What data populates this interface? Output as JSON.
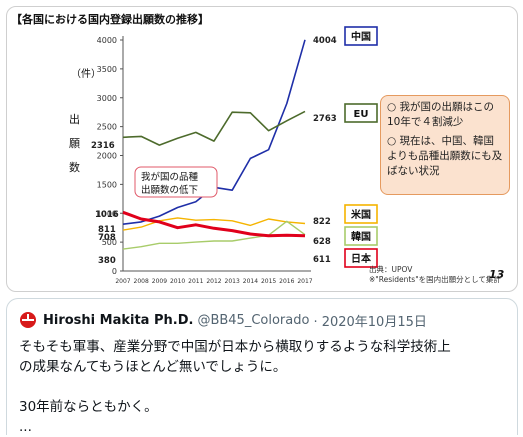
{
  "slide": {
    "title": "【各国における国内登録出願数の推移】",
    "unit_label": "（件）",
    "ylabel_chars": [
      "出",
      "願",
      "数"
    ],
    "callout": "我が国の品種\n出願数の低下",
    "source_line1": "出典：UPOV",
    "source_line2": "※\"Residents\"を国内出願分として集計",
    "page_number": "13",
    "note_items": [
      "○ 我が国の出願はこの10年で４割減少",
      "○ 現在は、中国、韓国よりも品種出願数にも及ばない状況"
    ]
  },
  "chart_data": {
    "type": "line",
    "x": [
      2007,
      2008,
      2009,
      2010,
      2011,
      2012,
      2013,
      2014,
      2015,
      2016,
      2017
    ],
    "ylim": [
      0,
      4000
    ],
    "yticks": [
      0,
      500,
      1000,
      1500,
      2000,
      2500,
      3000,
      3500,
      4000
    ],
    "series": [
      {
        "name": "中国",
        "color": "#1f2fa8",
        "values": [
          811,
          850,
          950,
          1100,
          1200,
          1450,
          1400,
          1950,
          2100,
          2900,
          4004
        ],
        "start_label": "811",
        "end_label": "4004"
      },
      {
        "name": "EU",
        "color": "#4d6b2c",
        "values": [
          2316,
          2330,
          2180,
          2300,
          2400,
          2250,
          2750,
          2740,
          2430,
          2600,
          2763
        ],
        "start_label": "2316",
        "end_label": "2763"
      },
      {
        "name": "米国",
        "color": "#f5b400",
        "values": [
          708,
          760,
          870,
          920,
          880,
          890,
          870,
          790,
          900,
          850,
          822
        ],
        "start_label": "708",
        "end_label": "822"
      },
      {
        "name": "韓国",
        "color": "#a8cc6a",
        "values": [
          380,
          420,
          480,
          480,
          500,
          520,
          520,
          570,
          620,
          860,
          628
        ],
        "start_label": "380",
        "end_label": "628"
      },
      {
        "name": "日本",
        "color": "#e0001b",
        "values": [
          1016,
          900,
          850,
          750,
          800,
          740,
          700,
          640,
          610,
          620,
          611
        ],
        "start_label": "1016",
        "end_label": "611"
      }
    ]
  },
  "tweet": {
    "author": "Hiroshi Makita Ph.D.",
    "handle": "@BB45_Colorado",
    "date": "· 2020年10月15日",
    "line1": "そもそも軍事、産業分野で中国が日本から横取りするような科学技術上",
    "line2": "の成果なんてもうほとんど無いでしょうに。",
    "line3": "30年前ならともかく。",
    "ellipsis": "..."
  }
}
